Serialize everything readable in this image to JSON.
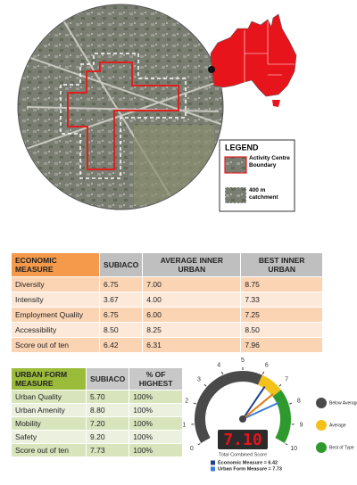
{
  "legend": {
    "title": "LEGEND",
    "items": [
      "Activity Centre Boundary",
      "400 m catchment"
    ]
  },
  "economic_table": {
    "header": [
      "ECONOMIC MEASURE",
      "SUBIACO",
      "AVERAGE INNER URBAN",
      "BEST INNER URBAN"
    ],
    "rows": [
      [
        "Diversity",
        "6.75",
        "7.00",
        "8.75"
      ],
      [
        "Intensity",
        "3.67",
        "4.00",
        "7.33"
      ],
      [
        "Employment Quality",
        "6.75",
        "6.00",
        "7.25"
      ],
      [
        "Accessibility",
        "8.50",
        "8.25",
        "8.50"
      ],
      [
        "Score out of ten",
        "6.42",
        "6.31",
        "7.96"
      ]
    ]
  },
  "urban_form_table": {
    "header": [
      "URBAN FORM MEASURE",
      "SUBIACO",
      "% OF HIGHEST"
    ],
    "rows": [
      [
        "Urban Quality",
        "5.70",
        "100%"
      ],
      [
        "Urban Amenity",
        "8.80",
        "100%"
      ],
      [
        "Mobility",
        "7.20",
        "100%"
      ],
      [
        "Safety",
        "9.20",
        "100%"
      ],
      [
        "Score out of ten",
        "7.73",
        "100%"
      ]
    ]
  },
  "gauge": {
    "ticks": [
      0,
      1,
      2,
      3,
      4,
      5,
      6,
      7,
      8,
      9,
      10
    ],
    "score": {
      "value": 7.1,
      "label": "7.10"
    },
    "caption": "Total Combined Score",
    "ranges": [
      {
        "name": "Below Average",
        "color": "#4a4a4a"
      },
      {
        "name": "Average",
        "color": "#f2c21b"
      },
      {
        "name": "Best of Type",
        "color": "#2e9a2e"
      }
    ],
    "measures": [
      {
        "label": "Economic Measure = 6.42",
        "value": 6.42,
        "color": "#1f3f8f"
      },
      {
        "label": "Urban Form Measure = 7.73",
        "value": 7.73,
        "color": "#3a7bd5"
      }
    ]
  }
}
